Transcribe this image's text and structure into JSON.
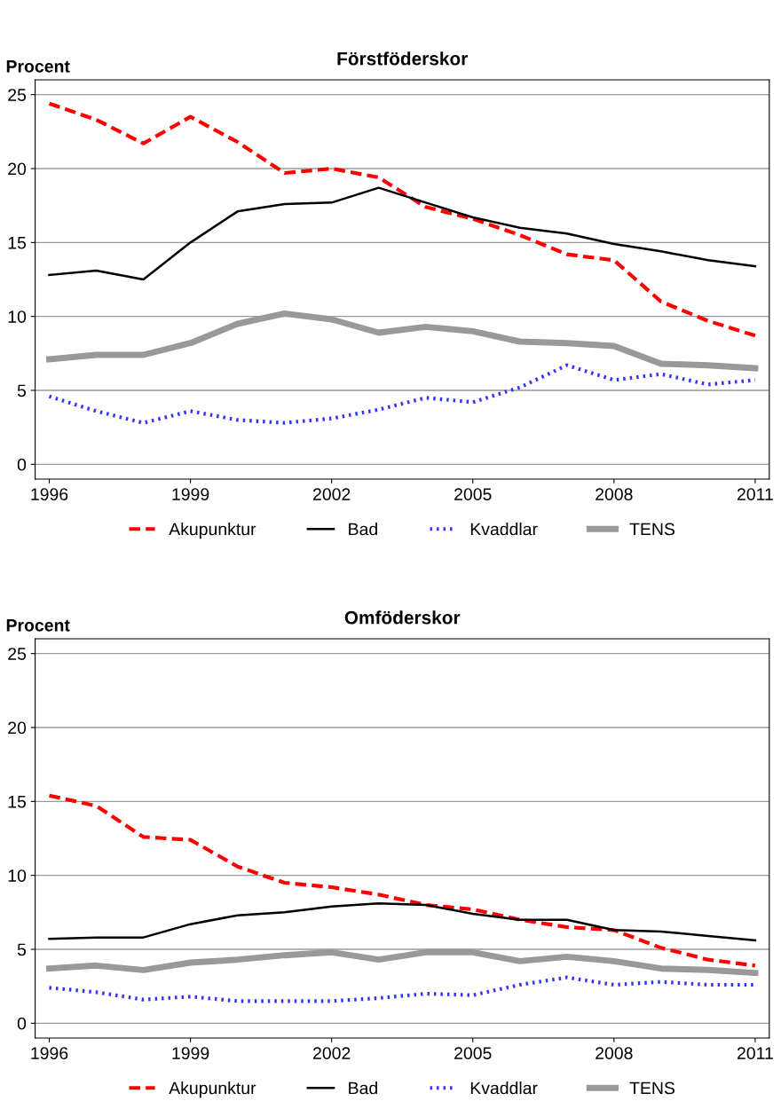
{
  "chart_data": [
    {
      "type": "line",
      "title": "Förstföderskor",
      "ylabel": "Procent",
      "x": [
        1996,
        1997,
        1998,
        1999,
        2000,
        2001,
        2002,
        2003,
        2004,
        2005,
        2006,
        2007,
        2008,
        2009,
        2010,
        2011
      ],
      "xlim": [
        1995.7,
        2011.3
      ],
      "xticks": [
        1996,
        1999,
        2002,
        2005,
        2008,
        2011
      ],
      "ylim": [
        -1,
        26
      ],
      "yticks": [
        0,
        5,
        10,
        15,
        20,
        25
      ],
      "grid": "y",
      "legend": "bottom",
      "series": [
        {
          "name": "Akupunktur",
          "color": "#ff0000",
          "line_style": "dashed",
          "values": [
            24.4,
            23.3,
            21.7,
            23.5,
            21.8,
            19.7,
            20.0,
            19.4,
            17.4,
            16.6,
            15.5,
            14.2,
            13.8,
            11.0,
            9.7,
            8.7
          ]
        },
        {
          "name": "Bad",
          "color": "#000000",
          "line_style": "solid",
          "values": [
            12.8,
            13.1,
            12.5,
            15.0,
            17.1,
            17.6,
            17.7,
            18.7,
            17.7,
            16.7,
            16.0,
            15.6,
            14.9,
            14.4,
            13.8,
            13.4
          ]
        },
        {
          "name": "Kvaddlar",
          "color": "#3333ff",
          "line_style": "dotted",
          "values": [
            4.6,
            3.6,
            2.8,
            3.6,
            3.0,
            2.8,
            3.1,
            3.7,
            4.5,
            4.2,
            5.2,
            6.7,
            5.7,
            6.1,
            5.4,
            5.7
          ]
        },
        {
          "name": "TENS",
          "color": "#999999",
          "line_style": "solid",
          "values": [
            7.1,
            7.4,
            7.4,
            8.2,
            9.5,
            10.2,
            9.8,
            8.9,
            9.3,
            9.0,
            8.3,
            8.2,
            8.0,
            6.8,
            6.7,
            6.5
          ]
        }
      ]
    },
    {
      "type": "line",
      "title": "Omföderskor",
      "ylabel": "Procent",
      "x": [
        1996,
        1997,
        1998,
        1999,
        2000,
        2001,
        2002,
        2003,
        2004,
        2005,
        2006,
        2007,
        2008,
        2009,
        2010,
        2011
      ],
      "xlim": [
        1995.7,
        2011.3
      ],
      "xticks": [
        1996,
        1999,
        2002,
        2005,
        2008,
        2011
      ],
      "ylim": [
        -1,
        26
      ],
      "yticks": [
        0,
        5,
        10,
        15,
        20,
        25
      ],
      "grid": "y",
      "legend": "bottom",
      "series": [
        {
          "name": "Akupunktur",
          "color": "#ff0000",
          "line_style": "dashed",
          "values": [
            15.4,
            14.7,
            12.6,
            12.4,
            10.6,
            9.5,
            9.2,
            8.7,
            8.0,
            7.7,
            7.0,
            6.5,
            6.3,
            5.1,
            4.3,
            3.9
          ]
        },
        {
          "name": "Bad",
          "color": "#000000",
          "line_style": "solid",
          "values": [
            5.7,
            5.8,
            5.8,
            6.7,
            7.3,
            7.5,
            7.9,
            8.1,
            8.0,
            7.4,
            7.0,
            7.0,
            6.3,
            6.2,
            5.9,
            5.6
          ]
        },
        {
          "name": "Kvaddlar",
          "color": "#3333ff",
          "line_style": "dotted",
          "values": [
            2.4,
            2.1,
            1.6,
            1.8,
            1.5,
            1.5,
            1.5,
            1.7,
            2.0,
            1.9,
            2.6,
            3.1,
            2.6,
            2.8,
            2.6,
            2.6
          ]
        },
        {
          "name": "TENS",
          "color": "#999999",
          "line_style": "solid",
          "values": [
            3.7,
            3.9,
            3.6,
            4.1,
            4.3,
            4.6,
            4.8,
            4.3,
            4.8,
            4.8,
            4.2,
            4.5,
            4.2,
            3.7,
            3.6,
            3.4
          ]
        }
      ]
    }
  ]
}
